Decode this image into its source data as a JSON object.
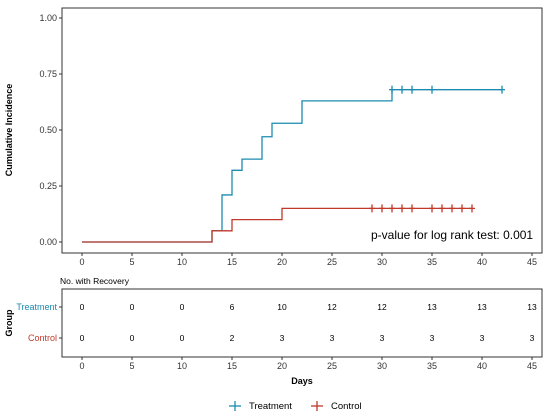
{
  "chart_data": [
    {
      "type": "line",
      "step": true,
      "ylabel": "Cumulative Incidence",
      "xlim": [
        -2,
        46
      ],
      "ylim": [
        0,
        1
      ],
      "xticks": [
        0,
        5,
        10,
        15,
        20,
        25,
        30,
        35,
        40,
        45
      ],
      "yticks": [
        "0.00",
        "0.25",
        "0.50",
        "0.75",
        "1.00"
      ],
      "grid": false,
      "annotation": "p-value for log rank test: 0.001",
      "series": [
        {
          "name": "Treatment",
          "color": "#1b8bb0",
          "steps": [
            [
              0,
              0
            ],
            [
              13,
              0.05
            ],
            [
              14,
              0.21
            ],
            [
              15,
              0.32
            ],
            [
              16,
              0.37
            ],
            [
              18,
              0.47
            ],
            [
              19,
              0.53
            ],
            [
              22,
              0.63
            ],
            [
              31,
              0.68
            ]
          ],
          "end_x": 42,
          "censored": [
            31,
            32,
            33,
            35,
            42
          ]
        },
        {
          "name": "Control",
          "color": "#c0392b",
          "steps": [
            [
              0,
              0
            ],
            [
              13,
              0.05
            ],
            [
              15,
              0.1
            ],
            [
              20,
              0.15
            ]
          ],
          "end_x": 39,
          "censored": [
            29,
            30,
            31,
            32,
            33,
            35,
            36,
            37,
            38,
            39
          ]
        }
      ]
    },
    {
      "type": "table",
      "title": "No. with Recovery",
      "ylabel": "Group",
      "xlabel": "Days",
      "x": [
        0,
        5,
        10,
        15,
        20,
        25,
        30,
        35,
        40,
        45
      ],
      "xticks": [
        0,
        5,
        10,
        15,
        20,
        25,
        30,
        35,
        40,
        45
      ],
      "rows": [
        {
          "name": "Treatment",
          "color": "#1b8bb0",
          "values": [
            "0",
            "0",
            "0",
            "6",
            "10",
            "12",
            "12",
            "13",
            "13",
            "13"
          ]
        },
        {
          "name": "Control",
          "color": "#c0392b",
          "values": [
            "0",
            "0",
            "0",
            "2",
            "3",
            "3",
            "3",
            "3",
            "3",
            "3"
          ]
        }
      ]
    }
  ],
  "legend": {
    "position": "bottom",
    "items": [
      {
        "label": "Treatment",
        "color": "#1b8bb0"
      },
      {
        "label": "Control",
        "color": "#c0392b"
      }
    ]
  }
}
